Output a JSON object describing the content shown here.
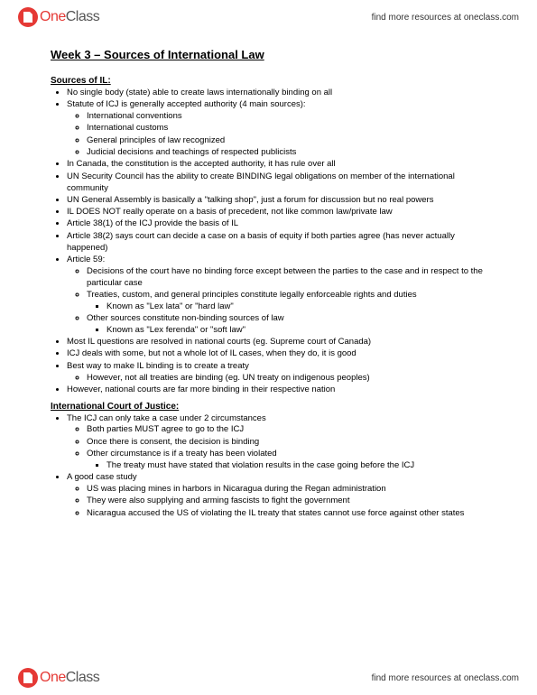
{
  "brand": {
    "part1": "One",
    "part2": "Class",
    "tagline": "find more resources at oneclass.com"
  },
  "title": "Week 3 – Sources of International Law",
  "sections": [
    {
      "heading": "Sources of IL:",
      "items": [
        {
          "text": "No single body (state) able to create laws internationally binding on all"
        },
        {
          "text": "Statute of ICJ is generally accepted authority (4 main sources):",
          "children": [
            {
              "text": "International conventions"
            },
            {
              "text": "International customs"
            },
            {
              "text": "General principles of law recognized"
            },
            {
              "text": "Judicial decisions and teachings of respected publicists"
            }
          ]
        },
        {
          "text": "In Canada, the constitution is the accepted authority, it has rule over all"
        },
        {
          "text": "UN Security Council has the ability to create BINDING legal obligations on member of the international community"
        },
        {
          "text": "UN General Assembly is basically a \"talking shop\", just a forum for discussion but no real powers"
        },
        {
          "text": "IL DOES NOT really operate on a basis of precedent, not like common law/private law"
        },
        {
          "text": "Article 38(1) of the ICJ provide the basis of IL"
        },
        {
          "text": "Article 38(2) says court can decide a case on a basis of equity if both parties agree (has never actually happened)"
        },
        {
          "text": "Article 59:",
          "children": [
            {
              "text": "Decisions of the court have no binding force except between the parties to the case and in respect to the particular case"
            },
            {
              "text": "Treaties, custom, and general principles constitute legally enforceable rights and duties",
              "children": [
                {
                  "text": "Known as \"Lex lata\" or \"hard law\""
                }
              ]
            },
            {
              "text": "Other sources constitute non-binding sources of law",
              "children": [
                {
                  "text": "Known as \"Lex ferenda\" or \"soft law\""
                }
              ]
            }
          ]
        },
        {
          "text": "Most IL questions are resolved in national courts (eg. Supreme court of Canada)"
        },
        {
          "text": "ICJ deals with some, but not a whole lot of IL cases, when they do, it is good"
        },
        {
          "text": "Best way to make IL binding is to create a treaty",
          "children": [
            {
              "text": "However, not all treaties are binding (eg. UN treaty on indigenous peoples)"
            }
          ]
        },
        {
          "text": "However, national courts are far more binding in their respective nation"
        }
      ]
    },
    {
      "heading": "International Court of Justice:",
      "items": [
        {
          "text": "The ICJ can only take a case under 2 circumstances",
          "children": [
            {
              "text": "Both parties MUST agree to go to the ICJ"
            },
            {
              "text": "Once there is consent, the decision is binding"
            },
            {
              "text": "Other circumstance is if a treaty has been violated",
              "children": [
                {
                  "text": "The treaty must have stated that violation results in the case going before the ICJ"
                }
              ]
            }
          ]
        },
        {
          "text": "A good case study",
          "children": [
            {
              "text": "US was placing mines in harbors in Nicaragua during the Regan administration"
            },
            {
              "text": "They were also supplying and arming fascists to fight the government"
            },
            {
              "text": "Nicaragua accused the US of violating the IL treaty that states cannot use force against other states"
            }
          ]
        }
      ]
    }
  ]
}
